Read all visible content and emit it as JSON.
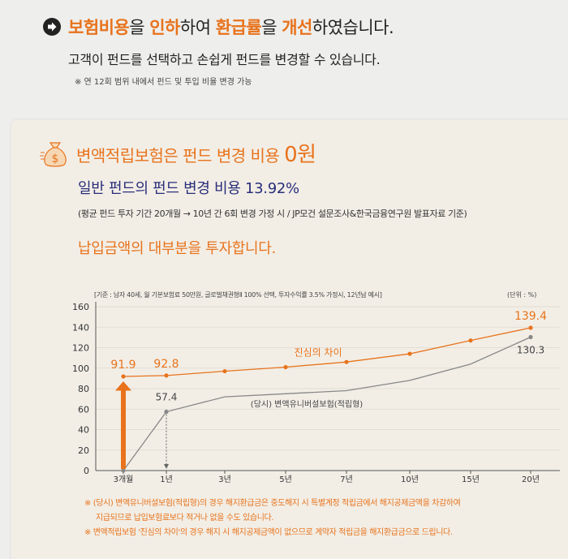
{
  "header": {
    "headline_parts": [
      {
        "text": "보험비용",
        "style": "hl"
      },
      {
        "text": "을 ",
        "style": "normal"
      },
      {
        "text": "인하",
        "style": "hl"
      },
      {
        "text": "하여 ",
        "style": "normal"
      },
      {
        "text": "환급률",
        "style": "hl"
      },
      {
        "text": "을 ",
        "style": "normal"
      },
      {
        "text": "개선",
        "style": "hl"
      },
      {
        "text": "하였습니다.",
        "style": "normal"
      }
    ],
    "subline": "고객이 펀드를 선택하고 손쉽게 펀드를 변경할 수 있습니다.",
    "note": "※ 연 12회 범위 내에서 펀드 및 투입 비율 변경 가능"
  },
  "panel": {
    "title_prefix": "변액적립보험은 펀드 변경 비용 ",
    "title_value": "0원",
    "sub": "일반 펀드의 펀드 변경 비용 13.92%",
    "note": "(평균 펀드 투자 기간 20개월 → 10년 간 6회 변경 가정 시 / JP모건 설문조사&한국금융연구원 발표자료 기준)",
    "head2": "납입금액의 대부분을 투자합니다."
  },
  "chart_data": {
    "type": "line",
    "assumption": "[기준 : 남자 40세, 월 기본보험료 50만원, 글로벌채권형Ⅱ 100% 선택, 투자수익률 3.5% 가정시, 12년납 예시]",
    "unit": "(단위 : %)",
    "categories": [
      "3개월",
      "1년",
      "3년",
      "5년",
      "7년",
      "10년",
      "15년",
      "20년"
    ],
    "ylim": [
      0,
      160
    ],
    "yticks": [
      "0",
      "20",
      "40",
      "60",
      "80",
      "100",
      "120",
      "140",
      "160"
    ],
    "series": [
      {
        "name": "",
        "color": "#e8731c",
        "values": [
          91.9,
          92.8,
          97,
          101,
          106,
          114,
          127,
          139.4
        ],
        "labels": [
          {
            "index": 0,
            "text": "91.9"
          },
          {
            "index": 1,
            "text": "92.8"
          },
          {
            "index": 7,
            "text": "139.4"
          }
        ]
      },
      {
        "name": "",
        "color": "#888888",
        "values": [
          0,
          57.4,
          72,
          75,
          78,
          88,
          104,
          130.3
        ],
        "labels": [
          {
            "index": 1,
            "text": "57.4"
          },
          {
            "index": 7,
            "text": "130.3"
          }
        ]
      }
    ],
    "annotations": {
      "orange_label": "진심의 차이",
      "gray_label": "(당시) 변액유니버설보험(적립형)"
    }
  },
  "footnotes": {
    "line1": "※ (당시) 변액유니버설보험(적립형)의 경우 해지환급금은 중도해지 시 특별계정 적립금에서 해지공제금액을 차감하여",
    "line2": "지급되므로 납입보험료보다 적거나 없을 수도 있습니다.",
    "line3": "※ 변액적립보험 '진심의 차이'의 경우 해지 시 해지공제금액이 없으므로 계약자 적립금을 해지환급금으로 드립니다."
  },
  "colors": {
    "accent": "#e8731c",
    "navy": "#2a2e7a",
    "gray_line": "#888888"
  }
}
